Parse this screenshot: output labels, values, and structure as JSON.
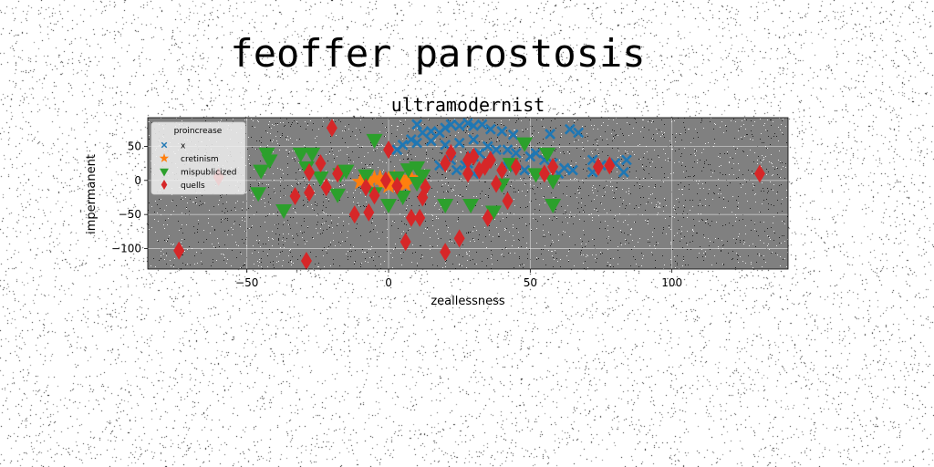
{
  "chart_data": {
    "type": "scatter",
    "suptitle": "feoffer parostosis",
    "title": "ultramodernist",
    "xlabel": "zeallessness",
    "ylabel": "impermanent",
    "xlim": [
      -85,
      141
    ],
    "ylim": [
      -130,
      92
    ],
    "xticks": [
      -50,
      0,
      50,
      100
    ],
    "xtick_labels": [
      "−50",
      "0",
      "50",
      "100"
    ],
    "yticks": [
      -100,
      -50,
      0,
      50
    ],
    "ytick_labels": [
      "−100",
      "−50",
      "0",
      "50"
    ],
    "grid": true,
    "background": "#808080",
    "legend": {
      "title": "proincrease",
      "placement": "top-left"
    },
    "series": [
      {
        "name": "x",
        "marker": "x",
        "color": "#1f77b4",
        "points": [
          [
            10,
            82
          ],
          [
            15,
            72
          ],
          [
            20,
            77
          ],
          [
            22,
            82
          ],
          [
            25,
            80
          ],
          [
            28,
            84
          ],
          [
            30,
            80
          ],
          [
            33,
            82
          ],
          [
            36,
            75
          ],
          [
            40,
            72
          ],
          [
            44,
            67
          ],
          [
            18,
            70
          ],
          [
            12,
            70
          ],
          [
            8,
            60
          ],
          [
            5,
            52
          ],
          [
            3,
            45
          ],
          [
            10,
            55
          ],
          [
            15,
            58
          ],
          [
            20,
            52
          ],
          [
            25,
            55
          ],
          [
            30,
            60
          ],
          [
            35,
            50
          ],
          [
            38,
            45
          ],
          [
            42,
            45
          ],
          [
            45,
            40
          ],
          [
            50,
            35
          ],
          [
            52,
            40
          ],
          [
            55,
            30
          ],
          [
            58,
            25
          ],
          [
            62,
            18
          ],
          [
            65,
            15
          ],
          [
            57,
            68
          ],
          [
            67,
            70
          ],
          [
            64,
            75
          ],
          [
            72,
            30
          ],
          [
            75,
            22
          ],
          [
            80,
            25
          ],
          [
            84,
            30
          ],
          [
            83,
            12
          ],
          [
            72,
            12
          ],
          [
            60,
            10
          ],
          [
            48,
            15
          ],
          [
            42,
            20
          ],
          [
            35,
            28
          ],
          [
            30,
            10
          ],
          [
            28,
            25
          ],
          [
            22,
            30
          ],
          [
            24,
            15
          ],
          [
            18,
            22
          ],
          [
            30,
            35
          ],
          [
            32,
            40
          ],
          [
            27,
            22
          ]
        ]
      },
      {
        "name": "cretinism",
        "marker": "star",
        "color": "#ff7f0e",
        "points": [
          [
            -10,
            -2
          ],
          [
            -7,
            0
          ],
          [
            -5,
            2
          ],
          [
            -3,
            3
          ],
          [
            0,
            1
          ],
          [
            2,
            3
          ],
          [
            5,
            0
          ],
          [
            8,
            4
          ],
          [
            -2,
            -5
          ],
          [
            3,
            -3
          ],
          [
            6,
            -6
          ],
          [
            0,
            -8
          ]
        ]
      },
      {
        "name": "mispublicized",
        "marker": "triangle-down",
        "color": "#2ca02c",
        "points": [
          [
            -43,
            40
          ],
          [
            -42,
            30
          ],
          [
            -45,
            15
          ],
          [
            -46,
            -18
          ],
          [
            -37,
            -43
          ],
          [
            -31,
            40
          ],
          [
            -27,
            40
          ],
          [
            -29,
            20
          ],
          [
            -18,
            -20
          ],
          [
            -17,
            10
          ],
          [
            -5,
            60
          ],
          [
            -5,
            -18
          ],
          [
            0,
            -35
          ],
          [
            -8,
            8
          ],
          [
            5,
            -23
          ],
          [
            7,
            17
          ],
          [
            10,
            20
          ],
          [
            12,
            8
          ],
          [
            10,
            -3
          ],
          [
            20,
            -35
          ],
          [
            29,
            -35
          ],
          [
            37,
            -45
          ],
          [
            40,
            -5
          ],
          [
            43,
            25
          ],
          [
            48,
            55
          ],
          [
            52,
            10
          ],
          [
            56,
            40
          ],
          [
            58,
            -35
          ],
          [
            58,
            0
          ],
          [
            -15,
            15
          ],
          [
            -24,
            5
          ],
          [
            3,
            5
          ]
        ]
      },
      {
        "name": "quells",
        "marker": "diamond",
        "color": "#d62728",
        "points": [
          [
            -20,
            77
          ],
          [
            -24,
            25
          ],
          [
            -28,
            12
          ],
          [
            -22,
            -10
          ],
          [
            -28,
            -18
          ],
          [
            -18,
            10
          ],
          [
            -12,
            -50
          ],
          [
            -7,
            -47
          ],
          [
            -8,
            -10
          ],
          [
            -5,
            -22
          ],
          [
            -33,
            -23
          ],
          [
            -1,
            0
          ],
          [
            0,
            45
          ],
          [
            3,
            -8
          ],
          [
            6,
            -90
          ],
          [
            8,
            -55
          ],
          [
            11,
            -55
          ],
          [
            12,
            -25
          ],
          [
            20,
            25
          ],
          [
            22,
            40
          ],
          [
            25,
            -85
          ],
          [
            28,
            10
          ],
          [
            28,
            30
          ],
          [
            30,
            35
          ],
          [
            32,
            15
          ],
          [
            34,
            20
          ],
          [
            35,
            -55
          ],
          [
            36,
            30
          ],
          [
            38,
            -5
          ],
          [
            40,
            15
          ],
          [
            42,
            -30
          ],
          [
            45,
            20
          ],
          [
            55,
            10
          ],
          [
            58,
            20
          ],
          [
            74,
            20
          ],
          [
            78,
            22
          ],
          [
            131,
            10
          ],
          [
            20,
            -105
          ],
          [
            -29,
            -118
          ],
          [
            -74,
            -103
          ],
          [
            -60,
            5
          ],
          [
            13,
            -10
          ]
        ]
      }
    ]
  }
}
